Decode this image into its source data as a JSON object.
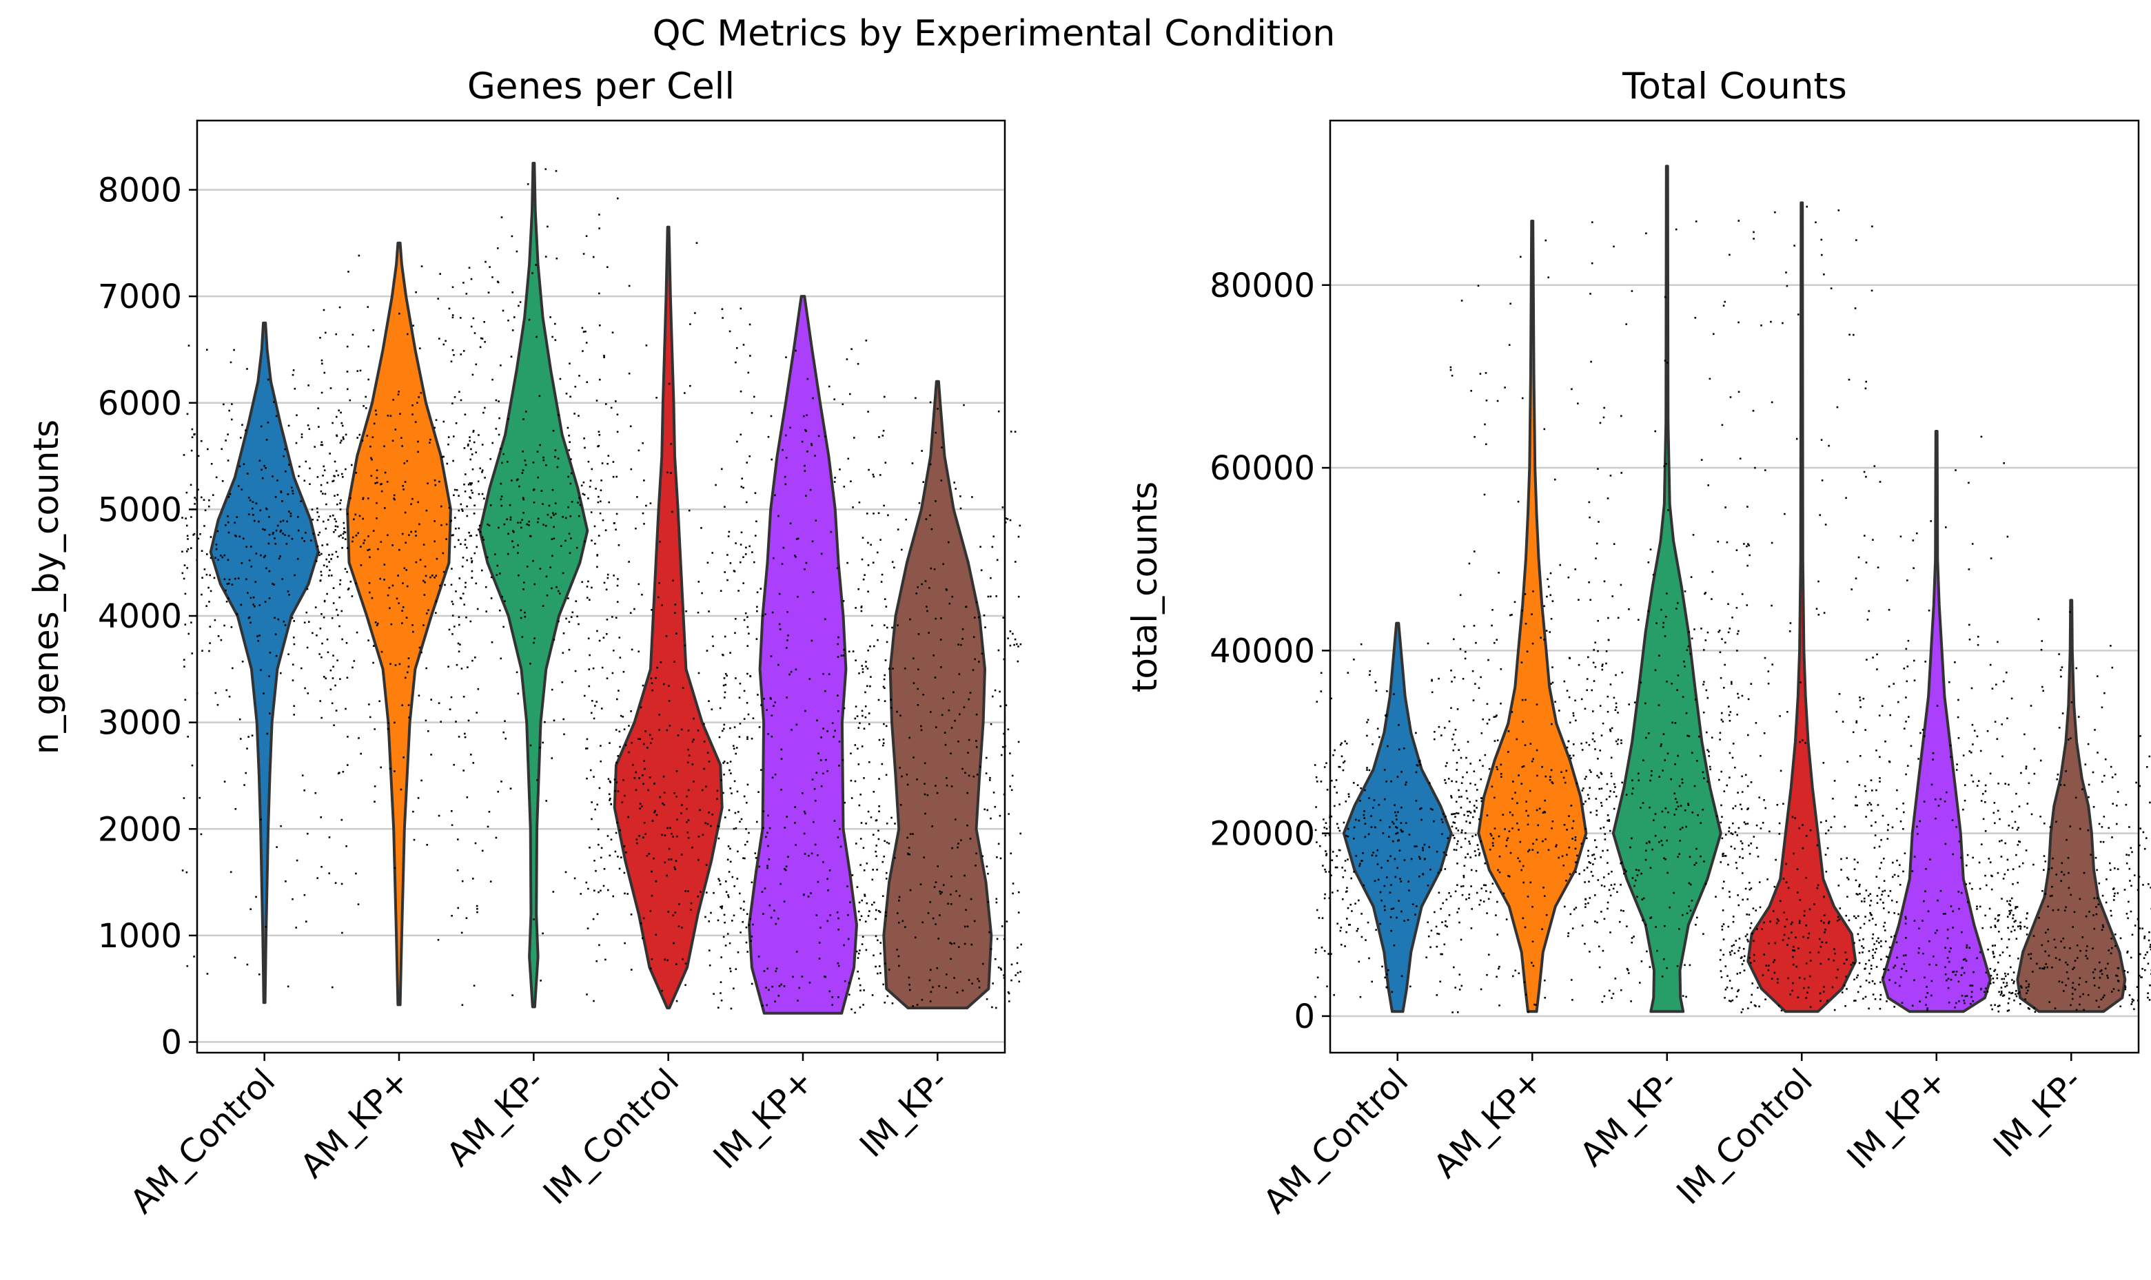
{
  "figure": {
    "title": "QC Metrics by Experimental Condition"
  },
  "chart_data": [
    {
      "type": "violin",
      "title": "Genes per Cell",
      "xlabel": "",
      "ylabel": "n_genes_by_counts",
      "ylim": [
        -100,
        8650
      ],
      "yticks": [
        0,
        1000,
        2000,
        3000,
        4000,
        5000,
        6000,
        7000,
        8000
      ],
      "ytick_labels": [
        "0",
        "1000",
        "2000",
        "3000",
        "4000",
        "5000",
        "6000",
        "7000",
        "8000"
      ],
      "grid": "y",
      "categories": [
        "AM_Control",
        "AM_KP+",
        "AM_KP-",
        "IM_Control",
        "IM_KP+",
        "IM_KP-"
      ],
      "colors": [
        "#1f77b4",
        "#ff7f0e",
        "#279e68",
        "#d62728",
        "#aa40fc",
        "#8c564b"
      ],
      "violins": [
        {
          "category": "AM_Control",
          "min": 370,
          "max": 6750,
          "profile": [
            [
              370,
              0.01
            ],
            [
              1000,
              0.03
            ],
            [
              2000,
              0.07
            ],
            [
              2500,
              0.1
            ],
            [
              3000,
              0.14
            ],
            [
              3500,
              0.24
            ],
            [
              4000,
              0.5
            ],
            [
              4300,
              0.82
            ],
            [
              4600,
              1.0
            ],
            [
              4900,
              0.86
            ],
            [
              5300,
              0.55
            ],
            [
              5800,
              0.3
            ],
            [
              6200,
              0.12
            ],
            [
              6500,
              0.05
            ],
            [
              6750,
              0.02
            ]
          ]
        },
        {
          "category": "AM_KP+",
          "min": 350,
          "max": 7500,
          "profile": [
            [
              350,
              0.02
            ],
            [
              1000,
              0.05
            ],
            [
              2000,
              0.1
            ],
            [
              3000,
              0.2
            ],
            [
              3500,
              0.3
            ],
            [
              4000,
              0.6
            ],
            [
              4500,
              0.93
            ],
            [
              5000,
              0.96
            ],
            [
              5500,
              0.78
            ],
            [
              6000,
              0.5
            ],
            [
              6500,
              0.3
            ],
            [
              7000,
              0.13
            ],
            [
              7300,
              0.05
            ],
            [
              7500,
              0.02
            ]
          ]
        },
        {
          "category": "AM_KP-",
          "min": 330,
          "max": 8250,
          "profile": [
            [
              330,
              0.02
            ],
            [
              800,
              0.08
            ],
            [
              1200,
              0.05
            ],
            [
              2000,
              0.06
            ],
            [
              3000,
              0.13
            ],
            [
              3500,
              0.23
            ],
            [
              4000,
              0.47
            ],
            [
              4500,
              0.86
            ],
            [
              4800,
              1.0
            ],
            [
              5200,
              0.82
            ],
            [
              5700,
              0.53
            ],
            [
              6300,
              0.32
            ],
            [
              6800,
              0.17
            ],
            [
              7300,
              0.08
            ],
            [
              7800,
              0.03
            ],
            [
              8250,
              0.01
            ]
          ]
        },
        {
          "category": "IM_Control",
          "min": 320,
          "max": 7650,
          "profile": [
            [
              320,
              0.02
            ],
            [
              700,
              0.35
            ],
            [
              1200,
              0.55
            ],
            [
              1700,
              0.8
            ],
            [
              2200,
              1.0
            ],
            [
              2600,
              0.97
            ],
            [
              3000,
              0.63
            ],
            [
              3500,
              0.33
            ],
            [
              4000,
              0.28
            ],
            [
              4500,
              0.23
            ],
            [
              5000,
              0.18
            ],
            [
              5500,
              0.12
            ],
            [
              6000,
              0.1
            ],
            [
              6500,
              0.07
            ],
            [
              7000,
              0.04
            ],
            [
              7650,
              0.01
            ]
          ]
        },
        {
          "category": "IM_KP+",
          "min": 270,
          "max": 7000,
          "profile": [
            [
              270,
              0.72
            ],
            [
              700,
              0.95
            ],
            [
              1100,
              1.0
            ],
            [
              1600,
              0.87
            ],
            [
              2000,
              0.75
            ],
            [
              3000,
              0.73
            ],
            [
              3500,
              0.8
            ],
            [
              4000,
              0.75
            ],
            [
              4500,
              0.66
            ],
            [
              5000,
              0.6
            ],
            [
              5500,
              0.48
            ],
            [
              6000,
              0.32
            ],
            [
              6500,
              0.17
            ],
            [
              7000,
              0.03
            ]
          ]
        },
        {
          "category": "IM_KP-",
          "min": 320,
          "max": 6200,
          "profile": [
            [
              320,
              0.55
            ],
            [
              500,
              0.95
            ],
            [
              1000,
              1.0
            ],
            [
              1500,
              0.9
            ],
            [
              2000,
              0.72
            ],
            [
              2500,
              0.78
            ],
            [
              3000,
              0.85
            ],
            [
              3500,
              0.88
            ],
            [
              4000,
              0.78
            ],
            [
              4500,
              0.57
            ],
            [
              5000,
              0.3
            ],
            [
              5500,
              0.13
            ],
            [
              6000,
              0.05
            ],
            [
              6200,
              0.02
            ]
          ]
        }
      ]
    },
    {
      "type": "violin",
      "title": "Total Counts",
      "xlabel": "",
      "ylabel": "total_counts",
      "ylim": [
        -4000,
        98000
      ],
      "yticks": [
        0,
        20000,
        40000,
        60000,
        80000
      ],
      "ytick_labels": [
        "0",
        "20000",
        "40000",
        "60000",
        "80000"
      ],
      "grid": "y",
      "categories": [
        "AM_Control",
        "AM_KP+",
        "AM_KP-",
        "IM_Control",
        "IM_KP+",
        "IM_KP-"
      ],
      "colors": [
        "#1f77b4",
        "#ff7f0e",
        "#279e68",
        "#d62728",
        "#aa40fc",
        "#8c564b"
      ],
      "violins": [
        {
          "category": "AM_Control",
          "min": 500,
          "max": 43000,
          "profile": [
            [
              500,
              0.1
            ],
            [
              3000,
              0.17
            ],
            [
              7000,
              0.25
            ],
            [
              12000,
              0.45
            ],
            [
              16000,
              0.8
            ],
            [
              20000,
              1.0
            ],
            [
              23000,
              0.8
            ],
            [
              27000,
              0.45
            ],
            [
              31000,
              0.25
            ],
            [
              35000,
              0.14
            ],
            [
              39000,
              0.08
            ],
            [
              43000,
              0.02
            ]
          ]
        },
        {
          "category": "AM_KP+",
          "min": 500,
          "max": 87000,
          "profile": [
            [
              500,
              0.08
            ],
            [
              3000,
              0.13
            ],
            [
              7000,
              0.2
            ],
            [
              12000,
              0.43
            ],
            [
              16000,
              0.8
            ],
            [
              20000,
              1.0
            ],
            [
              24000,
              0.9
            ],
            [
              28000,
              0.7
            ],
            [
              32000,
              0.45
            ],
            [
              36000,
              0.32
            ],
            [
              40000,
              0.26
            ],
            [
              45000,
              0.18
            ],
            [
              50000,
              0.12
            ],
            [
              55000,
              0.08
            ],
            [
              60000,
              0.05
            ],
            [
              70000,
              0.03
            ],
            [
              87000,
              0.01
            ]
          ]
        },
        {
          "category": "AM_KP-",
          "min": 500,
          "max": 93000,
          "profile": [
            [
              500,
              0.3
            ],
            [
              2000,
              0.25
            ],
            [
              5000,
              0.24
            ],
            [
              10000,
              0.4
            ],
            [
              15000,
              0.75
            ],
            [
              20000,
              1.0
            ],
            [
              25000,
              0.8
            ],
            [
              30000,
              0.65
            ],
            [
              36000,
              0.52
            ],
            [
              42000,
              0.4
            ],
            [
              47000,
              0.27
            ],
            [
              52000,
              0.12
            ],
            [
              56000,
              0.05
            ],
            [
              65000,
              0.02
            ],
            [
              93000,
              0.01
            ]
          ]
        },
        {
          "category": "IM_Control",
          "min": 500,
          "max": 89000,
          "profile": [
            [
              500,
              0.3
            ],
            [
              3000,
              0.75
            ],
            [
              6000,
              1.0
            ],
            [
              9000,
              0.93
            ],
            [
              12000,
              0.6
            ],
            [
              15000,
              0.4
            ],
            [
              20000,
              0.3
            ],
            [
              25000,
              0.2
            ],
            [
              30000,
              0.12
            ],
            [
              35000,
              0.07
            ],
            [
              40000,
              0.04
            ],
            [
              50000,
              0.02
            ],
            [
              89000,
              0.01
            ]
          ]
        },
        {
          "category": "IM_KP+",
          "min": 500,
          "max": 64000,
          "profile": [
            [
              500,
              0.5
            ],
            [
              2000,
              0.9
            ],
            [
              4000,
              1.0
            ],
            [
              7000,
              0.85
            ],
            [
              10000,
              0.7
            ],
            [
              15000,
              0.5
            ],
            [
              20000,
              0.45
            ],
            [
              25000,
              0.35
            ],
            [
              30000,
              0.25
            ],
            [
              35000,
              0.15
            ],
            [
              40000,
              0.1
            ],
            [
              45000,
              0.05
            ],
            [
              50000,
              0.02
            ],
            [
              64000,
              0.01
            ]
          ]
        },
        {
          "category": "IM_KP-",
          "min": 500,
          "max": 45500,
          "profile": [
            [
              500,
              0.6
            ],
            [
              2000,
              0.95
            ],
            [
              4000,
              1.0
            ],
            [
              7000,
              0.9
            ],
            [
              10000,
              0.7
            ],
            [
              13000,
              0.5
            ],
            [
              16000,
              0.42
            ],
            [
              20000,
              0.38
            ],
            [
              23000,
              0.32
            ],
            [
              26000,
              0.2
            ],
            [
              30000,
              0.1
            ],
            [
              34000,
              0.05
            ],
            [
              40000,
              0.02
            ],
            [
              45500,
              0.01
            ]
          ]
        }
      ]
    }
  ]
}
